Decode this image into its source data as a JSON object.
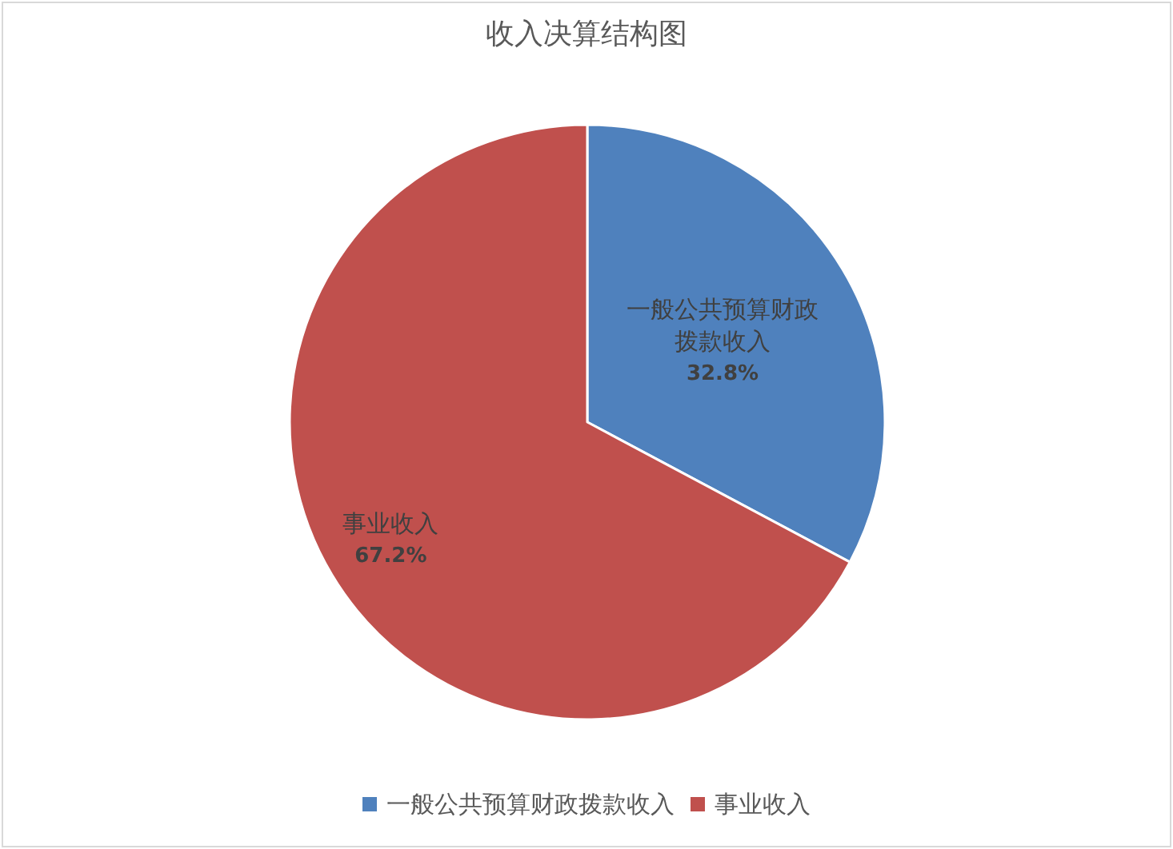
{
  "chart_data": {
    "type": "pie",
    "title": "收入决算结构图",
    "categories": [
      "一般公共预算财政拨款收入",
      "事业收入"
    ],
    "values": [
      32.8,
      67.2
    ],
    "value_labels": [
      "32.8%",
      "67.2%"
    ],
    "colors": [
      "#4f81bd",
      "#c0504d"
    ],
    "legend": "bottom"
  }
}
